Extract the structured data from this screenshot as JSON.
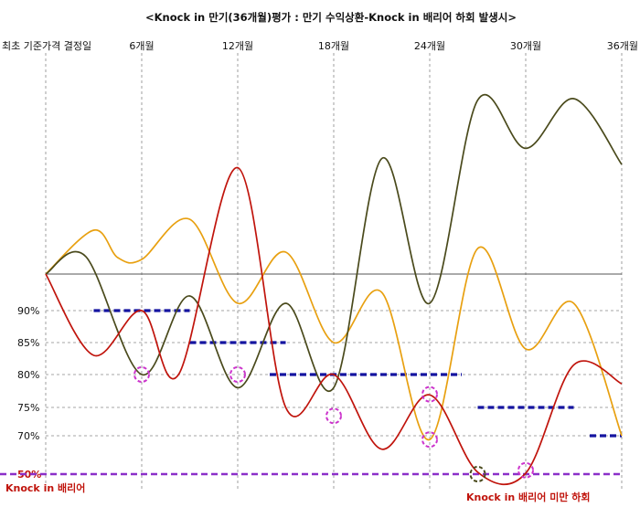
{
  "chart_data": {
    "type": "line",
    "title": "<Knock in 만기(36개월)평가 : 만기 수익상환-Knock in 배리어 하회 발생시>",
    "x_ticks": [
      "최초 기준가격 결정일",
      "6개월",
      "12개월",
      "18개월",
      "24개월",
      "30개월",
      "36개월"
    ],
    "x_tick_months": [
      0,
      6,
      12,
      18,
      24,
      30,
      36
    ],
    "y_ticks": [
      {
        "label": "90%",
        "value": 90
      },
      {
        "label": "85%",
        "value": 85
      },
      {
        "label": "80%",
        "value": 80
      },
      {
        "label": "75%",
        "value": 75
      },
      {
        "label": "70%",
        "value": 70
      },
      {
        "label": "50%",
        "value": 50
      }
    ],
    "initial_level": 100,
    "colors": {
      "orange": "#e8a010",
      "dark_olive": "#4a4a1c",
      "red": "#c0140c",
      "barrier": "#1414a0",
      "knock_in": "#8b2fc9",
      "circle": "#cc33cc",
      "circle_dark": "#4a4a1c"
    },
    "series": [
      {
        "color_key": "orange",
        "points": [
          [
            0,
            100
          ],
          [
            3,
            112
          ],
          [
            4.5,
            104.5
          ],
          [
            6,
            104
          ],
          [
            9,
            115
          ],
          [
            12,
            92
          ],
          [
            15,
            106
          ],
          [
            18,
            85
          ],
          [
            21,
            95
          ],
          [
            24,
            68
          ],
          [
            27,
            107
          ],
          [
            30,
            84
          ],
          [
            33,
            92
          ],
          [
            36,
            70
          ]
        ]
      },
      {
        "color_key": "dark_olive",
        "points": [
          [
            0,
            100
          ],
          [
            2.5,
            104.8
          ],
          [
            6,
            80
          ],
          [
            9,
            94
          ],
          [
            12,
            78
          ],
          [
            15,
            92
          ],
          [
            18,
            78
          ],
          [
            21,
            131.6
          ],
          [
            24,
            92
          ],
          [
            27,
            147.6
          ],
          [
            30,
            134.4
          ],
          [
            33,
            148
          ],
          [
            36,
            130
          ]
        ]
      },
      {
        "color_key": "red",
        "points": [
          [
            0,
            100
          ],
          [
            3,
            83
          ],
          [
            6,
            90
          ],
          [
            8.3,
            80
          ],
          [
            12,
            129.1
          ],
          [
            15,
            75
          ],
          [
            18,
            80
          ],
          [
            21,
            63
          ],
          [
            24,
            76.9
          ],
          [
            27,
            51
          ],
          [
            30,
            50.5
          ],
          [
            33,
            81.5
          ],
          [
            36,
            78.6
          ]
        ]
      }
    ],
    "barrier_steps": [
      {
        "from_month": 3,
        "to_month": 9,
        "level": 90
      },
      {
        "from_month": 9,
        "to_month": 15,
        "level": 85
      },
      {
        "from_month": 14,
        "to_month": 26,
        "level": 80
      },
      {
        "from_month": 27,
        "to_month": 33,
        "level": 75
      },
      {
        "from_month": 34,
        "to_month": 36,
        "level": 70
      }
    ],
    "knock_in_barrier": 50,
    "highlight_circles": [
      {
        "month": 6,
        "level": 80,
        "color_key": "circle"
      },
      {
        "month": 12,
        "level": 80,
        "color_key": "circle"
      },
      {
        "month": 18,
        "level": 73.5,
        "color_key": "circle"
      },
      {
        "month": 24,
        "level": 77,
        "color_key": "circle"
      },
      {
        "month": 24,
        "level": 68,
        "color_key": "circle"
      },
      {
        "month": 30,
        "level": 52,
        "color_key": "circle"
      },
      {
        "month": 27,
        "level": 50,
        "color_key": "circle_dark"
      }
    ],
    "annotations": {
      "knock_in_label": "Knock in 배리어",
      "breach_label": "Knock in 배리어 미만 하회"
    }
  }
}
